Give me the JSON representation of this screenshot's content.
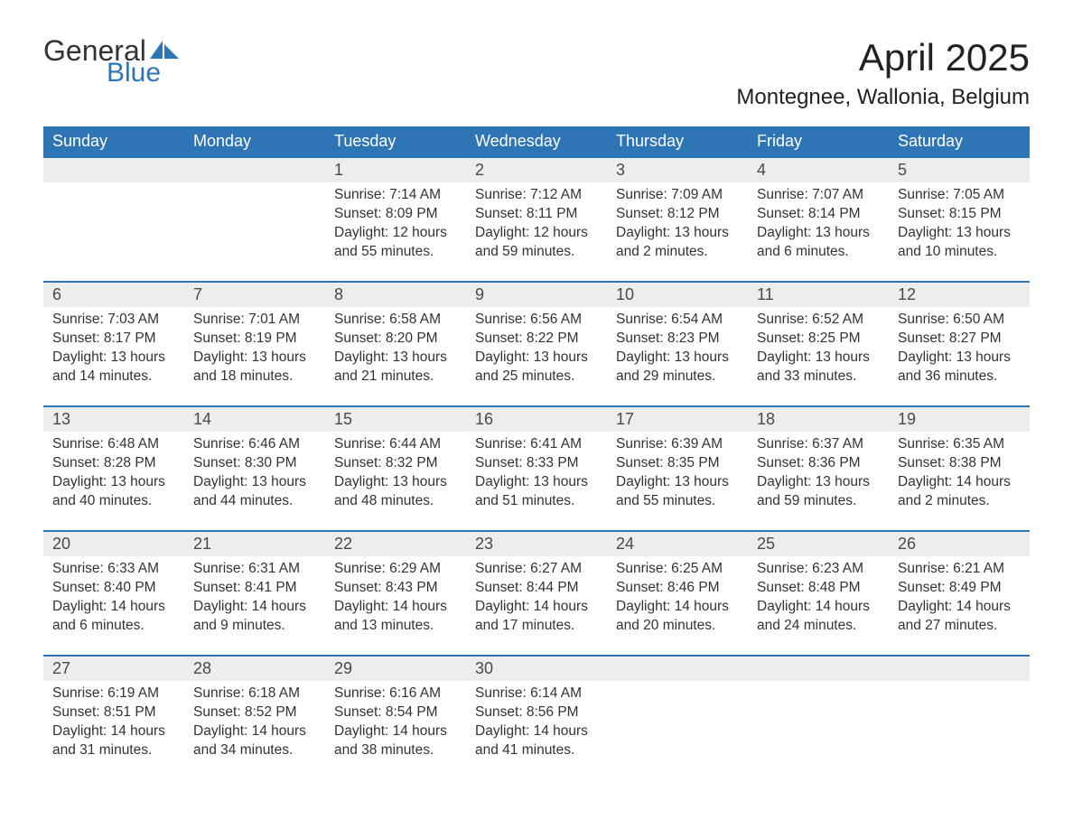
{
  "logo": {
    "word1": "General",
    "word2": "Blue"
  },
  "title": "April 2025",
  "location": "Montegnee, Wallonia, Belgium",
  "colors": {
    "header_bg": "#2e75b6",
    "header_text": "#ffffff",
    "daynum_bg": "#ededed",
    "row_border": "#2e75b6",
    "body_text": "#333333",
    "logo_blue": "#2e75b6",
    "background": "#ffffff"
  },
  "typography": {
    "title_fontsize": 42,
    "location_fontsize": 24,
    "dayheader_fontsize": 18,
    "daynum_fontsize": 18,
    "body_fontsize": 15.5,
    "font_family": "Arial"
  },
  "calendar": {
    "type": "month-grid",
    "columns": [
      "Sunday",
      "Monday",
      "Tuesday",
      "Wednesday",
      "Thursday",
      "Friday",
      "Saturday"
    ],
    "weeks": [
      [
        null,
        null,
        {
          "n": "1",
          "sunrise": "7:14 AM",
          "sunset": "8:09 PM",
          "daylight": "12 hours and 55 minutes."
        },
        {
          "n": "2",
          "sunrise": "7:12 AM",
          "sunset": "8:11 PM",
          "daylight": "12 hours and 59 minutes."
        },
        {
          "n": "3",
          "sunrise": "7:09 AM",
          "sunset": "8:12 PM",
          "daylight": "13 hours and 2 minutes."
        },
        {
          "n": "4",
          "sunrise": "7:07 AM",
          "sunset": "8:14 PM",
          "daylight": "13 hours and 6 minutes."
        },
        {
          "n": "5",
          "sunrise": "7:05 AM",
          "sunset": "8:15 PM",
          "daylight": "13 hours and 10 minutes."
        }
      ],
      [
        {
          "n": "6",
          "sunrise": "7:03 AM",
          "sunset": "8:17 PM",
          "daylight": "13 hours and 14 minutes."
        },
        {
          "n": "7",
          "sunrise": "7:01 AM",
          "sunset": "8:19 PM",
          "daylight": "13 hours and 18 minutes."
        },
        {
          "n": "8",
          "sunrise": "6:58 AM",
          "sunset": "8:20 PM",
          "daylight": "13 hours and 21 minutes."
        },
        {
          "n": "9",
          "sunrise": "6:56 AM",
          "sunset": "8:22 PM",
          "daylight": "13 hours and 25 minutes."
        },
        {
          "n": "10",
          "sunrise": "6:54 AM",
          "sunset": "8:23 PM",
          "daylight": "13 hours and 29 minutes."
        },
        {
          "n": "11",
          "sunrise": "6:52 AM",
          "sunset": "8:25 PM",
          "daylight": "13 hours and 33 minutes."
        },
        {
          "n": "12",
          "sunrise": "6:50 AM",
          "sunset": "8:27 PM",
          "daylight": "13 hours and 36 minutes."
        }
      ],
      [
        {
          "n": "13",
          "sunrise": "6:48 AM",
          "sunset": "8:28 PM",
          "daylight": "13 hours and 40 minutes."
        },
        {
          "n": "14",
          "sunrise": "6:46 AM",
          "sunset": "8:30 PM",
          "daylight": "13 hours and 44 minutes."
        },
        {
          "n": "15",
          "sunrise": "6:44 AM",
          "sunset": "8:32 PM",
          "daylight": "13 hours and 48 minutes."
        },
        {
          "n": "16",
          "sunrise": "6:41 AM",
          "sunset": "8:33 PM",
          "daylight": "13 hours and 51 minutes."
        },
        {
          "n": "17",
          "sunrise": "6:39 AM",
          "sunset": "8:35 PM",
          "daylight": "13 hours and 55 minutes."
        },
        {
          "n": "18",
          "sunrise": "6:37 AM",
          "sunset": "8:36 PM",
          "daylight": "13 hours and 59 minutes."
        },
        {
          "n": "19",
          "sunrise": "6:35 AM",
          "sunset": "8:38 PM",
          "daylight": "14 hours and 2 minutes."
        }
      ],
      [
        {
          "n": "20",
          "sunrise": "6:33 AM",
          "sunset": "8:40 PM",
          "daylight": "14 hours and 6 minutes."
        },
        {
          "n": "21",
          "sunrise": "6:31 AM",
          "sunset": "8:41 PM",
          "daylight": "14 hours and 9 minutes."
        },
        {
          "n": "22",
          "sunrise": "6:29 AM",
          "sunset": "8:43 PM",
          "daylight": "14 hours and 13 minutes."
        },
        {
          "n": "23",
          "sunrise": "6:27 AM",
          "sunset": "8:44 PM",
          "daylight": "14 hours and 17 minutes."
        },
        {
          "n": "24",
          "sunrise": "6:25 AM",
          "sunset": "8:46 PM",
          "daylight": "14 hours and 20 minutes."
        },
        {
          "n": "25",
          "sunrise": "6:23 AM",
          "sunset": "8:48 PM",
          "daylight": "14 hours and 24 minutes."
        },
        {
          "n": "26",
          "sunrise": "6:21 AM",
          "sunset": "8:49 PM",
          "daylight": "14 hours and 27 minutes."
        }
      ],
      [
        {
          "n": "27",
          "sunrise": "6:19 AM",
          "sunset": "8:51 PM",
          "daylight": "14 hours and 31 minutes."
        },
        {
          "n": "28",
          "sunrise": "6:18 AM",
          "sunset": "8:52 PM",
          "daylight": "14 hours and 34 minutes."
        },
        {
          "n": "29",
          "sunrise": "6:16 AM",
          "sunset": "8:54 PM",
          "daylight": "14 hours and 38 minutes."
        },
        {
          "n": "30",
          "sunrise": "6:14 AM",
          "sunset": "8:56 PM",
          "daylight": "14 hours and 41 minutes."
        },
        null,
        null,
        null
      ]
    ],
    "labels": {
      "sunrise": "Sunrise: ",
      "sunset": "Sunset: ",
      "daylight": "Daylight: "
    }
  }
}
